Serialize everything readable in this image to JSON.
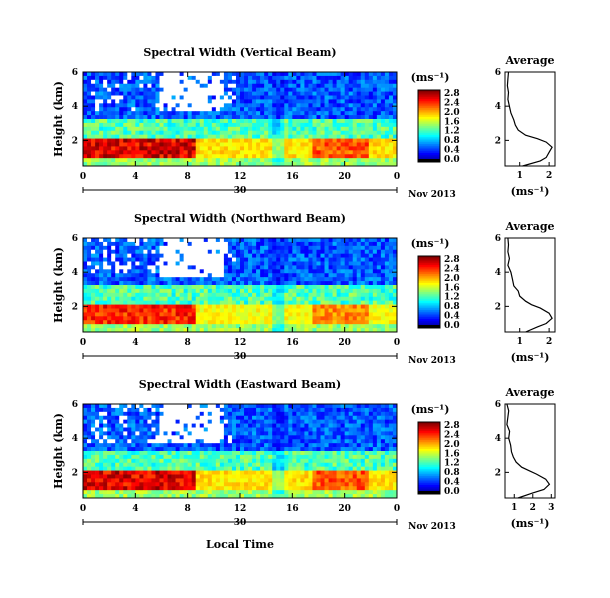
{
  "figure": {
    "date_label": "Nov 2013",
    "xlabel": "Local Time",
    "colorbar_unit": "(ms⁻¹)",
    "avg_title": "Average",
    "avg_xlabel": "(ms⁻¹)",
    "ylabel": "Height (km)"
  },
  "chart_data": [
    {
      "type": "heatmap",
      "title": "Spectral Width (Vertical Beam)",
      "xlabel": "Local Time",
      "ylabel": "Height (km)",
      "x_ticks": [
        "0",
        "4",
        "8",
        "12",
        "16",
        "20",
        "0"
      ],
      "x_day_label": "30",
      "y_ticks": [
        "2",
        "4",
        "6"
      ],
      "ylim": [
        0.5,
        6
      ],
      "colorbar": {
        "min": 0.0,
        "max": 2.8,
        "ticks": [
          "2.8",
          "2.4",
          "2.0",
          "1.6",
          "1.2",
          "0.8",
          "0.4",
          "0.0"
        ]
      },
      "description_values": {
        "low_layer_max": 2.8,
        "upper_layer_typical": 0.6,
        "mid_layer_typical": 1.2
      },
      "average_profile": {
        "xlim": [
          0.5,
          2.2
        ],
        "x_ticks": [
          "1",
          "2"
        ],
        "y_ticks": [
          "2",
          "4",
          "6"
        ],
        "heights": [
          0.5,
          0.8,
          1.0,
          1.3,
          1.6,
          1.9,
          2.1,
          2.3,
          2.6,
          2.9,
          3.2,
          3.6,
          4.0,
          4.4,
          4.8,
          5.2,
          5.6,
          6.0
        ],
        "values": [
          1.1,
          1.7,
          1.9,
          2.0,
          2.1,
          1.9,
          1.6,
          1.2,
          0.95,
          0.85,
          0.8,
          0.7,
          0.65,
          0.6,
          0.62,
          0.58,
          0.6,
          0.62
        ]
      }
    },
    {
      "type": "heatmap",
      "title": "Spectral Width (Northward Beam)",
      "xlabel": "Local Time",
      "ylabel": "Height (km)",
      "x_ticks": [
        "0",
        "4",
        "8",
        "12",
        "16",
        "20",
        "0"
      ],
      "x_day_label": "30",
      "y_ticks": [
        "2",
        "4",
        "6"
      ],
      "ylim": [
        0.5,
        6
      ],
      "colorbar": {
        "min": 0.0,
        "max": 2.8,
        "ticks": [
          "2.8",
          "2.4",
          "2.0",
          "1.6",
          "1.2",
          "0.8",
          "0.4",
          "0.0"
        ]
      },
      "description_values": {
        "low_layer_max": 2.6,
        "upper_layer_typical": 0.6,
        "mid_layer_typical": 1.2
      },
      "average_profile": {
        "xlim": [
          0.5,
          2.2
        ],
        "x_ticks": [
          "1",
          "2"
        ],
        "y_ticks": [
          "2",
          "4",
          "6"
        ],
        "heights": [
          0.5,
          0.8,
          1.0,
          1.3,
          1.6,
          1.9,
          2.1,
          2.3,
          2.6,
          2.9,
          3.2,
          3.6,
          4.0,
          4.4,
          4.8,
          5.2,
          5.6,
          6.0
        ],
        "values": [
          1.2,
          1.6,
          1.9,
          2.1,
          2.0,
          1.7,
          1.4,
          1.2,
          1.0,
          0.95,
          0.8,
          0.75,
          0.7,
          0.6,
          0.65,
          0.6,
          0.62,
          0.6
        ]
      }
    },
    {
      "type": "heatmap",
      "title": "Spectral Width (Eastward Beam)",
      "xlabel": "Local Time",
      "ylabel": "Height (km)",
      "x_ticks": [
        "0",
        "4",
        "8",
        "12",
        "16",
        "20",
        "0"
      ],
      "x_day_label": "30",
      "y_ticks": [
        "2",
        "4",
        "6"
      ],
      "ylim": [
        0.5,
        6
      ],
      "colorbar": {
        "min": 0.0,
        "max": 2.8,
        "ticks": [
          "2.8",
          "2.4",
          "2.0",
          "1.6",
          "1.2",
          "0.8",
          "0.4",
          "0.0"
        ]
      },
      "description_values": {
        "low_layer_max": 2.8,
        "upper_layer_typical": 0.6,
        "mid_layer_typical": 1.2
      },
      "average_profile": {
        "xlim": [
          0.5,
          3.2
        ],
        "x_ticks": [
          "1",
          "2",
          "3"
        ],
        "y_ticks": [
          "2",
          "4",
          "6"
        ],
        "heights": [
          0.5,
          0.8,
          1.0,
          1.3,
          1.6,
          1.9,
          2.1,
          2.3,
          2.6,
          2.9,
          3.2,
          3.6,
          4.0,
          4.4,
          4.8,
          5.2,
          5.6,
          6.0
        ],
        "values": [
          1.2,
          2.0,
          2.6,
          2.9,
          2.7,
          2.2,
          1.8,
          1.4,
          1.1,
          0.95,
          0.85,
          0.8,
          0.7,
          0.75,
          0.6,
          0.65,
          0.7,
          0.6
        ]
      }
    }
  ]
}
